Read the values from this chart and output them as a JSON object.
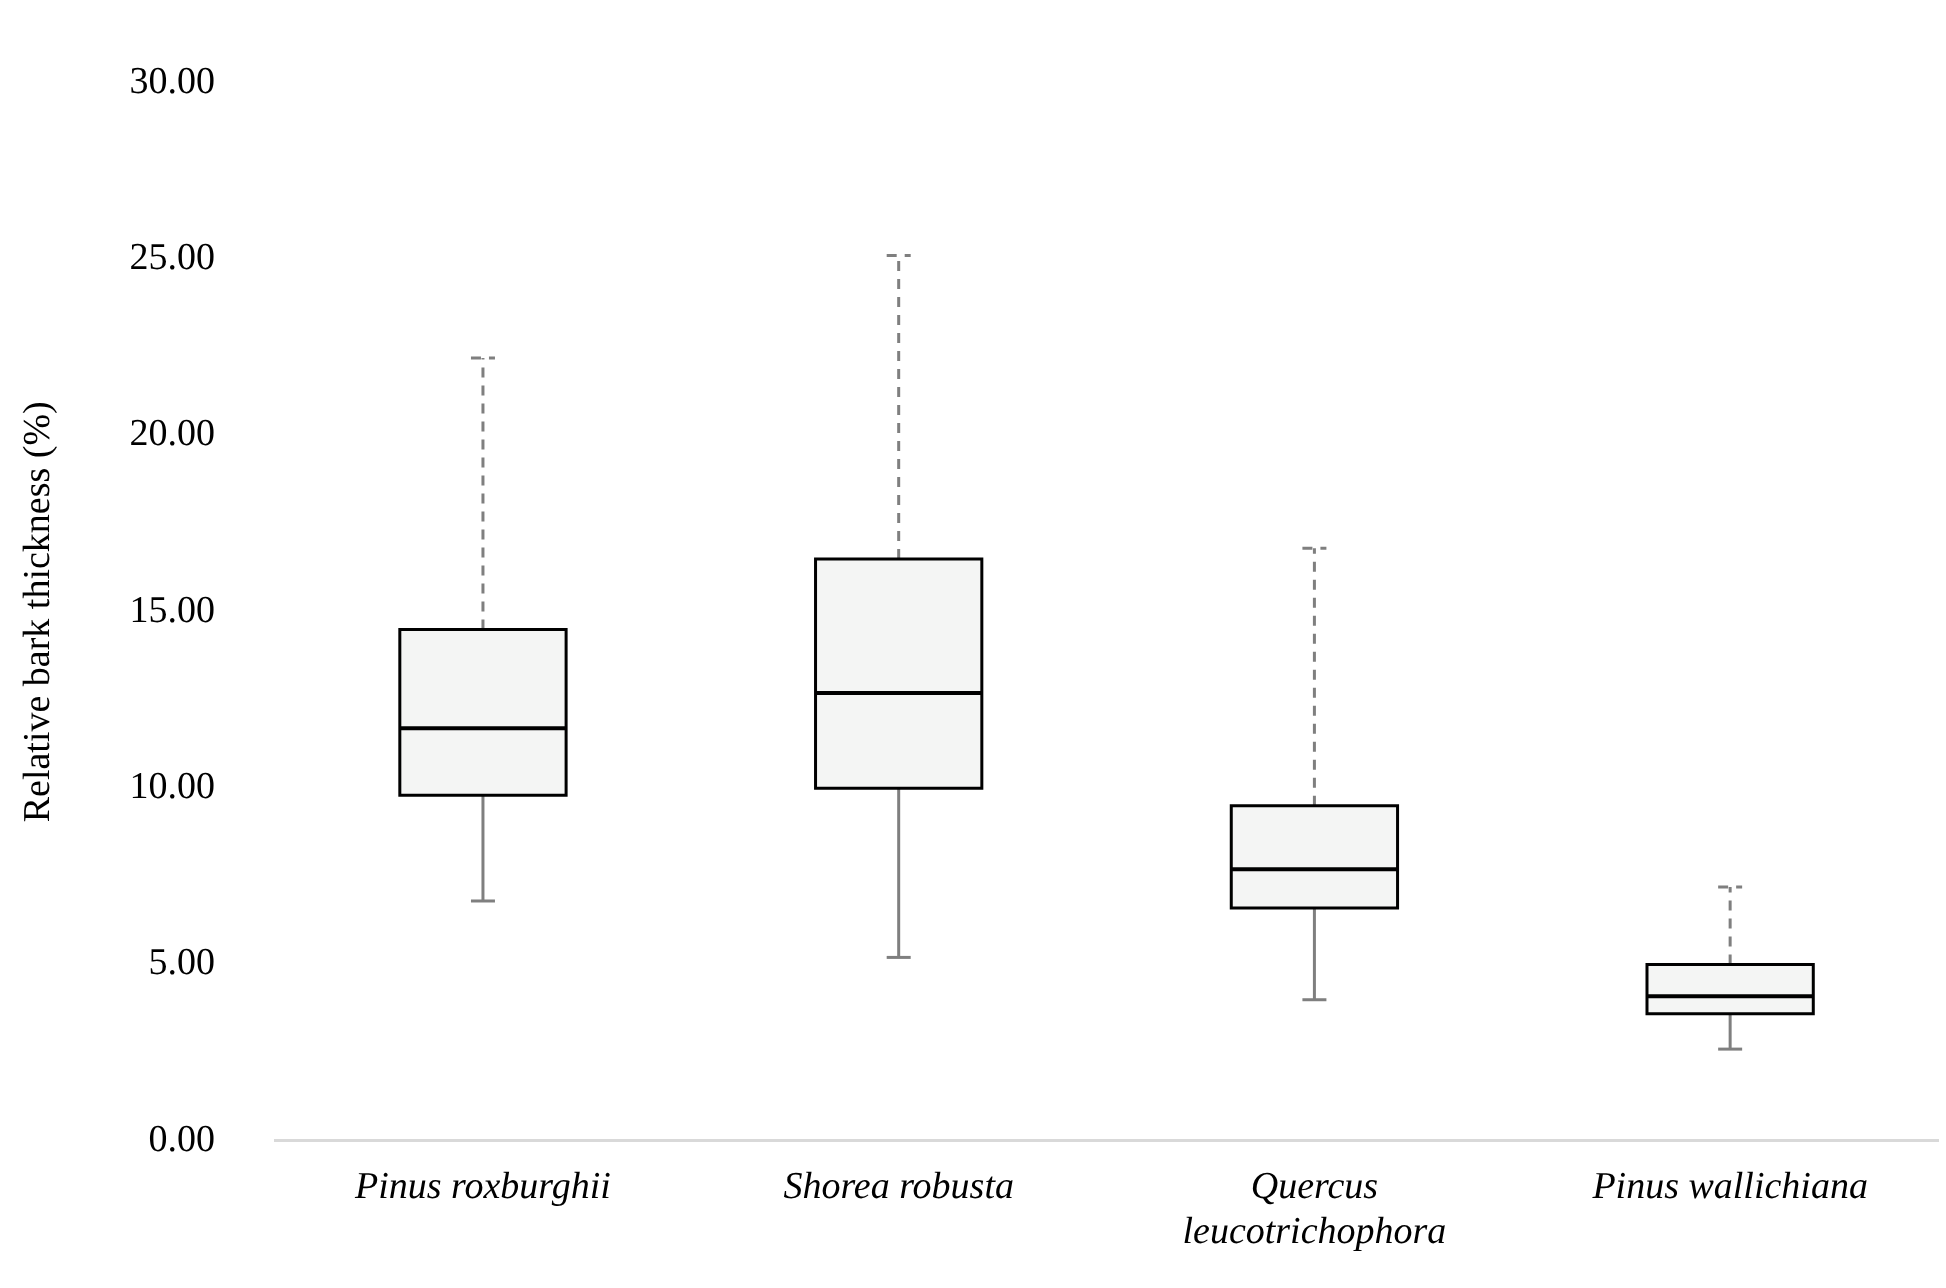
{
  "chart_data": {
    "type": "box",
    "ylabel": "Relative bark thickness (%)",
    "categories": [
      "Pinus roxburghii",
      "Shorea robusta",
      "Quercus leucotrichophora",
      "Pinus wallichiana"
    ],
    "boxes": [
      {
        "low": 6.8,
        "q1": 9.8,
        "median": 11.7,
        "q3": 14.5,
        "high": 22.2
      },
      {
        "low": 5.2,
        "q1": 10.0,
        "median": 12.7,
        "q3": 16.5,
        "high": 25.1
      },
      {
        "low": 4.0,
        "q1": 6.6,
        "median": 7.7,
        "q3": 9.5,
        "high": 16.8
      },
      {
        "low": 2.6,
        "q1": 3.6,
        "median": 4.1,
        "q3": 5.0,
        "high": 7.2
      }
    ],
    "color": "#f4f5f4",
    "ylim": [
      0,
      30
    ],
    "yticks": [
      {
        "value": 0,
        "label": "0.00"
      },
      {
        "value": 5,
        "label": "5.00"
      },
      {
        "value": 10,
        "label": "10.00"
      },
      {
        "value": 15,
        "label": "15.00"
      },
      {
        "value": 20,
        "label": "20.00"
      },
      {
        "value": 25,
        "label": "25.00"
      },
      {
        "value": 30,
        "label": "30.00"
      }
    ],
    "grid": false,
    "legend": false
  }
}
